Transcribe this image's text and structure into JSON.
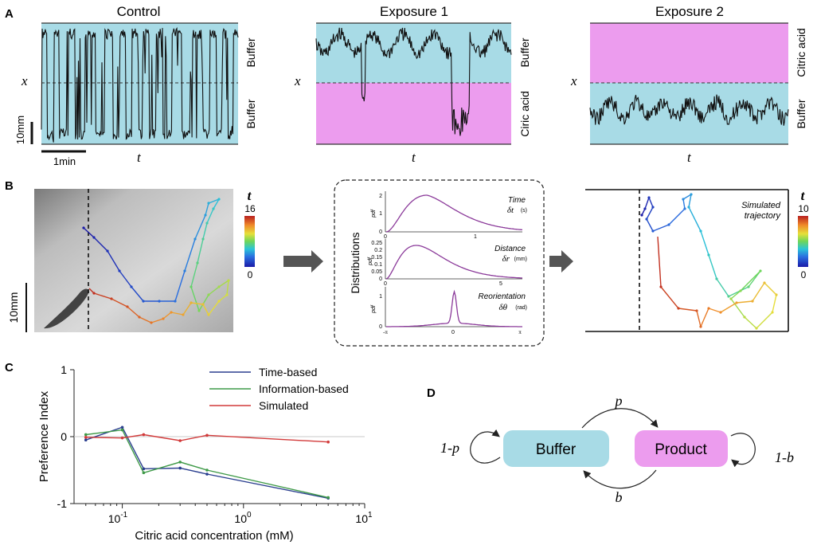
{
  "panel_labels": {
    "a": "A",
    "b": "B",
    "c": "C",
    "d": "D"
  },
  "colors": {
    "buffer": "#a8dbe6",
    "citric": "#ec9cee",
    "trace": "#111111",
    "time_based": "#2b3f8f",
    "information_based": "#3f9a48",
    "simulated": "#d23a3a",
    "pdf_curve": "#8b3a9a",
    "arrow": "#555555"
  },
  "panelA": {
    "x_label": "x",
    "t_label": "t",
    "scale_v": "10mm",
    "scale_h": "1min",
    "plots": [
      {
        "title": "Control",
        "upper": "Buffer",
        "lower": "Buffer",
        "pattern": "control"
      },
      {
        "title": "Exposure 1",
        "upper": "Buffer",
        "lower": "Ciric acid",
        "pattern": "exp1"
      },
      {
        "title": "Exposure 2",
        "upper": "Citric acid",
        "lower": "Buffer",
        "pattern": "exp2"
      }
    ]
  },
  "panelB": {
    "scale": "10mm",
    "colorbar1": {
      "label": "t",
      "max": "16",
      "min": "0"
    },
    "colorbar2": {
      "label": "t",
      "max": "10",
      "min": "0"
    },
    "sim_label_1": "Simulated",
    "sim_label_2": "trajectory",
    "dist_title": "Distributions",
    "pdf_label": "pdf",
    "dists": [
      {
        "name": "Time",
        "sym": "δt",
        "unit": "(s)",
        "yticks": [
          "0",
          "1",
          "2"
        ],
        "xticks": [
          "0",
          "1"
        ]
      },
      {
        "name": "Distance",
        "sym": "δr",
        "unit": "(mm)",
        "yticks": [
          "0",
          "0.05",
          "0.1",
          "0.15",
          "0.2",
          "0.25"
        ],
        "xticks": [
          "0",
          "5"
        ]
      },
      {
        "name": "Reorientation",
        "sym": "δθ",
        "unit": "(rad)",
        "yticks": [
          "0",
          "1"
        ],
        "xticks": [
          "-π",
          "0",
          "π"
        ]
      }
    ]
  },
  "chart_data": {
    "type": "line",
    "xscale": "log",
    "xlim": [
      0.04,
      10
    ],
    "ylim": [
      -1,
      1
    ],
    "x_ticks": [
      "10",
      "10",
      "10"
    ],
    "x_tick_exps": [
      "-1",
      "0",
      "1"
    ],
    "y_ticks": [
      "1",
      "0",
      "-1"
    ],
    "xlabel": "Citric acid concentration (mM)",
    "ylabel": "Preference Index",
    "series": [
      {
        "name": "Time-based",
        "color": "#2b3f8f",
        "x": [
          0.05,
          0.1,
          0.15,
          0.3,
          0.5,
          5.0
        ],
        "y": [
          -0.05,
          0.14,
          -0.48,
          -0.47,
          -0.56,
          -0.92
        ]
      },
      {
        "name": "Information-based",
        "color": "#3f9a48",
        "x": [
          0.05,
          0.1,
          0.15,
          0.3,
          0.5,
          5.0
        ],
        "y": [
          0.03,
          0.1,
          -0.54,
          -0.38,
          -0.5,
          -0.91
        ]
      },
      {
        "name": "Simulated",
        "color": "#d23a3a",
        "x": [
          0.05,
          0.1,
          0.15,
          0.3,
          0.5,
          5.0
        ],
        "y": [
          -0.01,
          -0.02,
          0.03,
          -0.06,
          0.02,
          -0.08
        ]
      }
    ]
  },
  "panelD": {
    "buffer": "Buffer",
    "product": "Product",
    "p": "p",
    "b": "b",
    "one_minus_p": "1-p",
    "one_minus_b": "1-b"
  }
}
